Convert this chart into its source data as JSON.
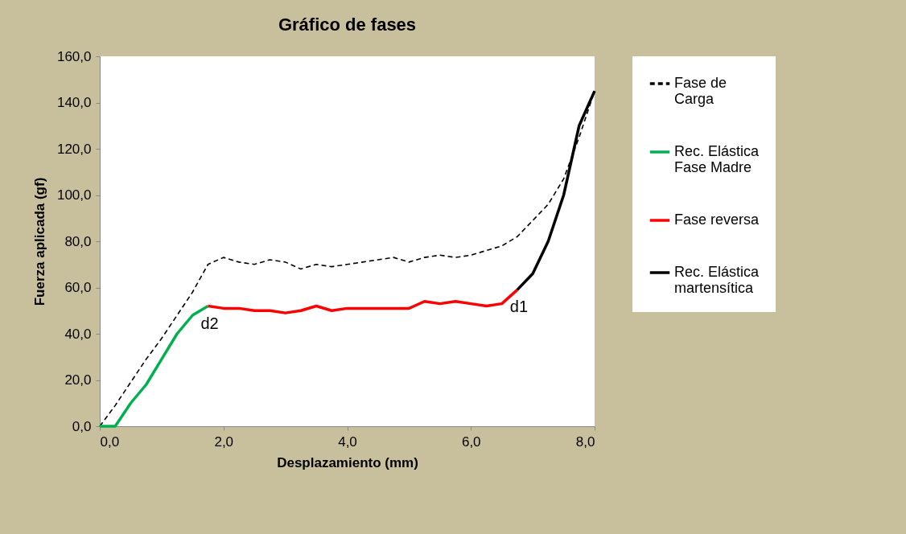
{
  "chart_data": {
    "type": "line",
    "title": "Gráfico de fases",
    "xlabel": "Desplazamiento (mm)",
    "ylabel": "Fuerza aplicada  (gf)",
    "xlim": [
      0,
      8
    ],
    "ylim": [
      0,
      160
    ],
    "xticks": [
      {
        "value": 0,
        "label": "0,0"
      },
      {
        "value": 2,
        "label": "2,0"
      },
      {
        "value": 4,
        "label": "4,0"
      },
      {
        "value": 6,
        "label": "6,0"
      },
      {
        "value": 8,
        "label": "8,0"
      }
    ],
    "yticks": [
      {
        "value": 0,
        "label": "0,0"
      },
      {
        "value": 20,
        "label": "20,0"
      },
      {
        "value": 40,
        "label": "40,0"
      },
      {
        "value": 60,
        "label": "60,0"
      },
      {
        "value": 80,
        "label": "80,0"
      },
      {
        "value": 100,
        "label": "100,0"
      },
      {
        "value": 120,
        "label": "120,0"
      },
      {
        "value": 140,
        "label": "140,0"
      },
      {
        "value": 160,
        "label": "160,0"
      }
    ],
    "grid": false,
    "legend": "right",
    "marker": "none",
    "series": [
      {
        "name": "Fase de Carga",
        "color": "#000000",
        "line_style": "dashed",
        "x": [
          0,
          0.25,
          0.5,
          0.75,
          1,
          1.25,
          1.5,
          1.75,
          2,
          2.25,
          2.5,
          2.75,
          3,
          3.25,
          3.5,
          3.75,
          4,
          4.25,
          4.5,
          4.75,
          5,
          5.25,
          5.5,
          5.75,
          6,
          6.25,
          6.5,
          6.75,
          7,
          7.25,
          7.5,
          7.75,
          8
        ],
        "values": [
          0,
          9,
          19,
          29,
          38,
          48,
          58,
          70,
          73,
          71,
          70,
          72,
          71,
          68,
          70,
          69,
          70,
          71,
          72,
          73,
          71,
          73,
          74,
          73,
          74,
          76,
          78,
          82,
          89,
          96,
          107,
          125,
          145
        ]
      },
      {
        "name": "Rec. Elástica Fase Madre",
        "color": "#00b050",
        "line_style": "solid",
        "x": [
          0,
          0.25,
          0.5,
          0.75,
          1,
          1.25,
          1.5,
          1.75
        ],
        "values": [
          0,
          0,
          10,
          18,
          29,
          40,
          48,
          52
        ]
      },
      {
        "name": "Fase reversa",
        "color": "#ff0000",
        "line_style": "solid",
        "x": [
          1.75,
          2,
          2.25,
          2.5,
          2.75,
          3,
          3.25,
          3.5,
          3.75,
          4,
          4.25,
          4.5,
          4.75,
          5,
          5.25,
          5.5,
          5.75,
          6,
          6.25,
          6.5,
          6.75
        ],
        "values": [
          52,
          51,
          51,
          50,
          50,
          49,
          50,
          52,
          50,
          51,
          51,
          51,
          51,
          51,
          54,
          53,
          54,
          53,
          52,
          53,
          59
        ]
      },
      {
        "name": "Rec. Elástica martensítica",
        "color": "#000000",
        "line_style": "solid",
        "x": [
          6.75,
          7,
          7.25,
          7.5,
          7.75,
          8
        ],
        "values": [
          59,
          66,
          80,
          100,
          130,
          145
        ]
      }
    ],
    "annotations": [
      {
        "text": "d2",
        "x": 1.75,
        "y": 52
      },
      {
        "text": "d1",
        "x": 6.75,
        "y": 59
      }
    ]
  }
}
